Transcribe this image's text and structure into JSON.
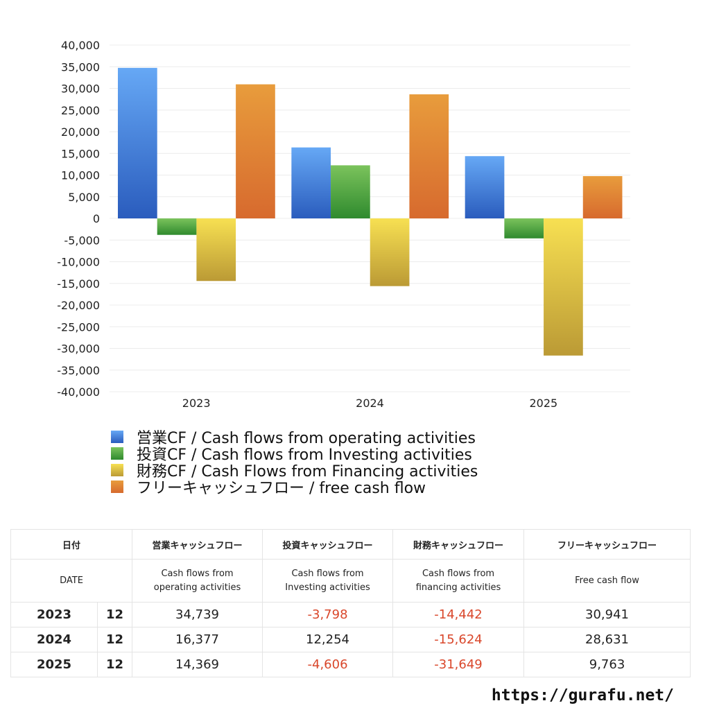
{
  "chart_data": {
    "type": "bar",
    "categories": [
      "2023",
      "2024",
      "2025"
    ],
    "ylim": [
      -40000,
      40000
    ],
    "ytick_step": 5000,
    "yticks": [
      "40,000",
      "35,000",
      "30,000",
      "25,000",
      "20,000",
      "15,000",
      "10,000",
      "5,000",
      "0",
      "-5,000",
      "-10,000",
      "-15,000",
      "-20,000",
      "-25,000",
      "-30,000",
      "-35,000",
      "-40,000"
    ],
    "grid": true,
    "series": [
      {
        "name": "営業CF / Cash flows from operating activities",
        "values": [
          34739,
          16377,
          14369
        ],
        "color": "#3d7fe0",
        "color_top": "#66a8f5",
        "color_bottom": "#2a5cbd"
      },
      {
        "name": "投資CF / Cash flows from Investing activities",
        "values": [
          -3798,
          12254,
          -4606
        ],
        "color": "#4ba340",
        "color_top": "#7bc35c",
        "color_bottom": "#2f8a2e"
      },
      {
        "name": "財務CF / Cash Flows from Financing activities",
        "values": [
          -14442,
          -15624,
          -31649
        ],
        "color": "#e0c040",
        "color_top": "#f7e052",
        "color_bottom": "#bb9a35"
      },
      {
        "name": "フリーキャッシュフロー / free cash flow",
        "values": [
          30941,
          28631,
          9763
        ],
        "color": "#e08030",
        "color_top": "#e89c3c",
        "color_bottom": "#d76a2e"
      }
    ]
  },
  "table": {
    "header_jp": [
      "日付",
      "営業キャッシュフロー",
      "投資キャッシュフロー",
      "財務キャッシュフロー",
      "フリーキャッシュフロー"
    ],
    "header_date_en": "DATE",
    "header_en": [
      [
        "Cash flows from",
        "operating activities"
      ],
      [
        "Cash flows from",
        "Investing activities"
      ],
      [
        "Cash flows from",
        "financing activities"
      ],
      [
        "Free cash flow"
      ]
    ],
    "rows": [
      {
        "year": "2023",
        "month": "12",
        "values": [
          "34,739",
          "-3,798",
          "-14,442",
          "30,941"
        ]
      },
      {
        "year": "2024",
        "month": "12",
        "values": [
          "16,377",
          "12,254",
          "-15,624",
          "28,631"
        ]
      },
      {
        "year": "2025",
        "month": "12",
        "values": [
          "14,369",
          "-4,606",
          "-31,649",
          "9,763"
        ]
      }
    ],
    "negative_color": "#d9472b"
  },
  "footer": "https://gurafu.net/"
}
